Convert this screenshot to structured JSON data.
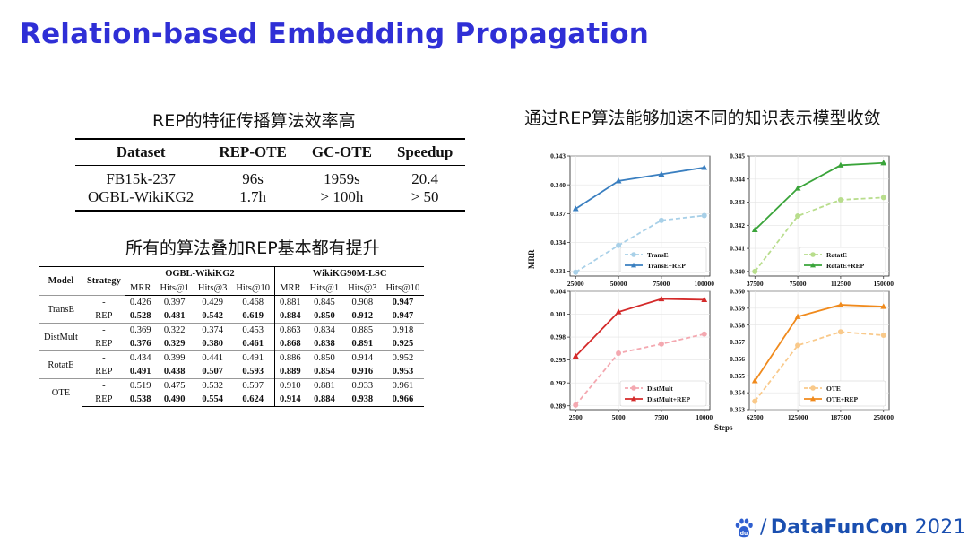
{
  "title": "Relation-based Embedding Propagation",
  "captions": {
    "table1": "REP的特征传播算法效率高",
    "table2": "所有的算法叠加REP基本都有提升",
    "charts": "通过REP算法能够加速不同的知识表示模型收敛"
  },
  "table1": {
    "headers": [
      "Dataset",
      "REP-OTE",
      "GC-OTE",
      "Speedup"
    ],
    "rows": [
      [
        "FB15k-237",
        "96s",
        "1959s",
        "20.4"
      ],
      [
        "OGBL-WikiKG2",
        "1.7h",
        "> 100h",
        "> 50"
      ]
    ]
  },
  "table2": {
    "col_model": "Model",
    "col_strategy": "Strategy",
    "group1": "OGBL-WikiKG2",
    "group2": "WikiKG90M-LSC",
    "metrics": [
      "MRR",
      "Hits@1",
      "Hits@3",
      "Hits@10",
      "MRR",
      "Hits@1",
      "Hits@3",
      "Hits@10"
    ],
    "models": [
      {
        "name": "TransE",
        "base": [
          "-",
          "0.426",
          "0.397",
          "0.429",
          "0.468",
          "0.881",
          "0.845",
          "0.908",
          "0.947"
        ],
        "rep": [
          "REP",
          "0.528",
          "0.481",
          "0.542",
          "0.619",
          "0.884",
          "0.850",
          "0.912",
          "0.947"
        ]
      },
      {
        "name": "DistMult",
        "base": [
          "-",
          "0.369",
          "0.322",
          "0.374",
          "0.453",
          "0.863",
          "0.834",
          "0.885",
          "0.918"
        ],
        "rep": [
          "REP",
          "0.376",
          "0.329",
          "0.380",
          "0.461",
          "0.868",
          "0.838",
          "0.891",
          "0.925"
        ]
      },
      {
        "name": "RotatE",
        "base": [
          "-",
          "0.434",
          "0.399",
          "0.441",
          "0.491",
          "0.886",
          "0.850",
          "0.914",
          "0.952"
        ],
        "rep": [
          "REP",
          "0.491",
          "0.438",
          "0.507",
          "0.593",
          "0.889",
          "0.854",
          "0.916",
          "0.953"
        ]
      },
      {
        "name": "OTE",
        "base": [
          "-",
          "0.519",
          "0.475",
          "0.532",
          "0.597",
          "0.910",
          "0.881",
          "0.933",
          "0.961"
        ],
        "rep": [
          "REP",
          "0.538",
          "0.490",
          "0.554",
          "0.624",
          "0.914",
          "0.884",
          "0.938",
          "0.966"
        ]
      }
    ]
  },
  "axis_labels": {
    "y": "MRR",
    "x": "Steps"
  },
  "chart_data": [
    {
      "type": "line",
      "x": [
        25000,
        50000,
        75000,
        100000
      ],
      "xticks": [
        "25000",
        "50000",
        "75000",
        "100000"
      ],
      "ylim": [
        0.3305,
        0.343
      ],
      "yticks": [
        "0.331",
        "0.334",
        "0.337",
        "0.340",
        "0.343"
      ],
      "ytick_values": [
        0.331,
        0.334,
        0.337,
        0.34,
        0.343
      ],
      "legend_position": "bottom-right",
      "series": [
        {
          "name": "TransE",
          "values": [
            0.3309,
            0.3337,
            0.3363,
            0.3368
          ],
          "color": "#a8d0e8",
          "dashed": true,
          "marker": "circle"
        },
        {
          "name": "TransE+REP",
          "values": [
            0.3375,
            0.3404,
            0.3411,
            0.3418
          ],
          "color": "#3a7fc0",
          "dashed": false,
          "marker": "triangle"
        }
      ]
    },
    {
      "type": "line",
      "x": [
        37500,
        75000,
        112500,
        150000
      ],
      "xticks": [
        "37500",
        "75000",
        "112500",
        "150000"
      ],
      "ylim": [
        0.3398,
        0.345
      ],
      "yticks": [
        "0.340",
        "0.341",
        "0.342",
        "0.343",
        "0.344",
        "0.345"
      ],
      "ytick_values": [
        0.34,
        0.341,
        0.342,
        0.343,
        0.344,
        0.345
      ],
      "legend_position": "bottom-right",
      "series": [
        {
          "name": "RotatE",
          "values": [
            0.34,
            0.3424,
            0.3431,
            0.3432
          ],
          "color": "#b8dd8c",
          "dashed": true,
          "marker": "circle"
        },
        {
          "name": "RotatE+REP",
          "values": [
            0.3418,
            0.3436,
            0.3446,
            0.3447
          ],
          "color": "#3aa43a",
          "dashed": false,
          "marker": "triangle"
        }
      ]
    },
    {
      "type": "line",
      "x": [
        2500,
        5000,
        7500,
        10000
      ],
      "xticks": [
        "2500",
        "5000",
        "7500",
        "10000"
      ],
      "ylim": [
        0.2885,
        0.304
      ],
      "yticks": [
        "0.289",
        "0.292",
        "0.295",
        "0.298",
        "0.301",
        "0.304"
      ],
      "ytick_values": [
        0.289,
        0.292,
        0.295,
        0.298,
        0.301,
        0.304
      ],
      "legend_position": "bottom-right",
      "series": [
        {
          "name": "DistMult",
          "values": [
            0.2891,
            0.2959,
            0.2971,
            0.2984
          ],
          "color": "#f4a8b0",
          "dashed": true,
          "marker": "circle"
        },
        {
          "name": "DistMult+REP",
          "values": [
            0.2955,
            0.3013,
            0.303,
            0.3029
          ],
          "color": "#d42a2a",
          "dashed": false,
          "marker": "triangle"
        }
      ]
    },
    {
      "type": "line",
      "x": [
        62500,
        125000,
        187500,
        250000
      ],
      "xticks": [
        "62500",
        "125000",
        "187500",
        "250000"
      ],
      "ylim": [
        0.353,
        0.36
      ],
      "yticks": [
        "0.353",
        "0.354",
        "0.355",
        "0.356",
        "0.357",
        "0.358",
        "0.359",
        "0.360"
      ],
      "ytick_values": [
        0.353,
        0.354,
        0.355,
        0.356,
        0.357,
        0.358,
        0.359,
        0.36
      ],
      "legend_position": "bottom-right",
      "series": [
        {
          "name": "OTE",
          "values": [
            0.3535,
            0.3568,
            0.3576,
            0.3574
          ],
          "color": "#f9c98a",
          "dashed": true,
          "marker": "circle"
        },
        {
          "name": "OTE+REP",
          "values": [
            0.3547,
            0.3585,
            0.3592,
            0.3591
          ],
          "color": "#f08a1c",
          "dashed": false,
          "marker": "triangle"
        }
      ]
    }
  ],
  "logo": {
    "slash": "/",
    "part1": "DataFun",
    "part2": "Con",
    "year": "2021",
    "icon": "paw-icon"
  }
}
